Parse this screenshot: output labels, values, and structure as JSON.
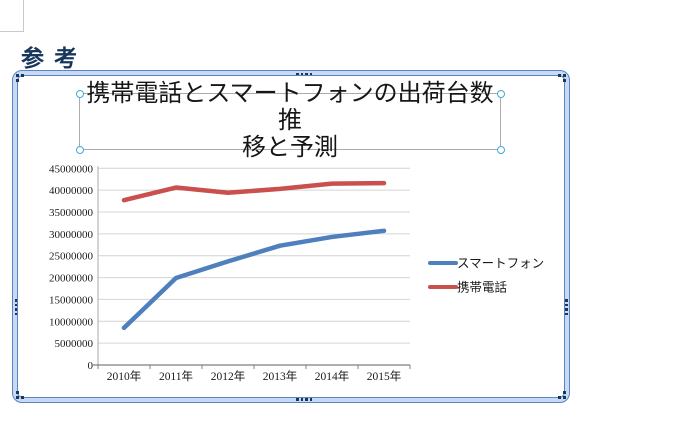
{
  "page": {
    "heading": "参考"
  },
  "chart": {
    "title_line1": "携帯電話とスマートフォンの出荷台数推",
    "title_line2": "移と予測"
  },
  "chart_data": {
    "type": "line",
    "title": "携帯電話とスマートフォンの出荷台数推移と予測",
    "categories": [
      "2010年",
      "2011年",
      "2012年",
      "2013年",
      "2014年",
      "2015年"
    ],
    "series": [
      {
        "name": "スマートフォン",
        "color": "#4e80bd",
        "values": [
          8500000,
          19900000,
          23700000,
          27300000,
          29300000,
          30700000
        ]
      },
      {
        "name": "携帯電話",
        "color": "#c9504e",
        "values": [
          37700000,
          40600000,
          39400000,
          40300000,
          41500000,
          41600000
        ]
      }
    ],
    "ylim": [
      0,
      45000000
    ],
    "ytick_step": 5000000,
    "ytick_labels": [
      "0",
      "5000000",
      "10000000",
      "15000000",
      "20000000",
      "25000000",
      "30000000",
      "35000000",
      "40000000",
      "45000000"
    ],
    "grid": true,
    "legend_position": "right"
  },
  "colors": {
    "heading": "#17365d",
    "frame_border": "#5b83c3",
    "frame_fill": "#c7d9f3",
    "handle_dot": "#17375e",
    "title_box_border": "#ababab",
    "title_handle_ring": "#45a7d8",
    "gridline": "#d4d4d4",
    "x_axis": "#7f7f7f",
    "y_axis": "#a8a8a8"
  }
}
